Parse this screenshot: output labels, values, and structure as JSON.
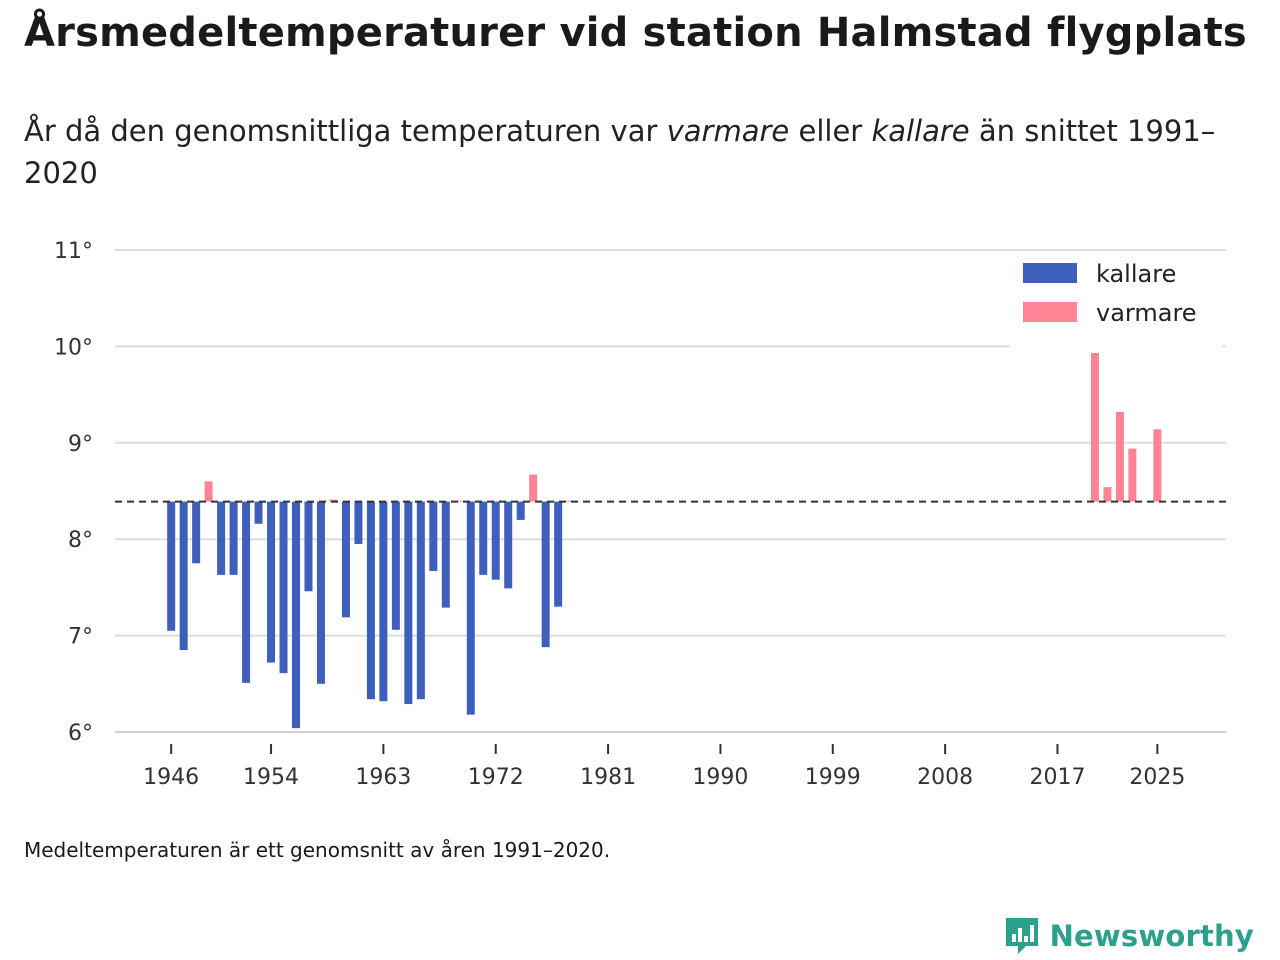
{
  "title": "Årsmedeltemperaturer vid station Halmstad flygplats",
  "subtitle": {
    "part1": "År då den genomsnittliga temperaturen var ",
    "warm": "varmare",
    "part2": " eller ",
    "cold": "kallare",
    "part3": " än snittet 1991–2020"
  },
  "footnote": "Medeltemperaturen är ett genomsnitt av åren 1991–2020.",
  "brand": "Newsworthy",
  "colors": {
    "cold": "#3f5fbd",
    "warm": "#ff8395",
    "baseline": "#333333",
    "grid": "#dddddd",
    "brand": "#2aa08d"
  },
  "chart_data": {
    "type": "bar",
    "baseline": 8.39,
    "ylim": [
      6,
      11
    ],
    "xlim": [
      1941.5,
      2030.5
    ],
    "yticks": [
      6,
      7,
      8,
      9,
      10,
      11
    ],
    "ytick_labels": [
      "6°",
      "7°",
      "8°",
      "9°",
      "10°",
      "11°"
    ],
    "xticks": [
      1946,
      1954,
      1963,
      1972,
      1981,
      1990,
      1999,
      2008,
      2017,
      2025
    ],
    "xtick_labels": [
      "1946",
      "1954",
      "1963",
      "1972",
      "1981",
      "1990",
      "1999",
      "2008",
      "2017",
      "2025"
    ],
    "legend": {
      "position": "top-right",
      "entries": [
        {
          "label": "kallare",
          "key": "cold"
        },
        {
          "label": "varmare",
          "key": "warm"
        }
      ]
    },
    "years": [
      1946,
      1947,
      1948,
      1949,
      1950,
      1951,
      1952,
      1953,
      1954,
      1955,
      1956,
      1957,
      1958,
      1959,
      1960,
      1961,
      1962,
      1963,
      1964,
      1965,
      1966,
      1967,
      1968,
      1969,
      1970,
      1971,
      1972,
      1973,
      1974,
      1975,
      1976,
      1977,
      1978,
      2020,
      2021,
      2022,
      2023,
      2025
    ],
    "values": [
      7.05,
      6.85,
      7.75,
      8.6,
      7.63,
      7.63,
      6.51,
      8.16,
      6.72,
      6.61,
      6.04,
      7.46,
      6.5,
      8.41,
      7.19,
      7.95,
      6.34,
      6.32,
      7.06,
      6.29,
      6.34,
      7.67,
      7.29,
      8.4,
      6.18,
      7.63,
      7.58,
      7.49,
      8.2,
      8.67,
      6.88,
      7.3,
      8.4,
      10.02,
      8.54,
      9.32,
      8.94,
      9.14
    ]
  }
}
